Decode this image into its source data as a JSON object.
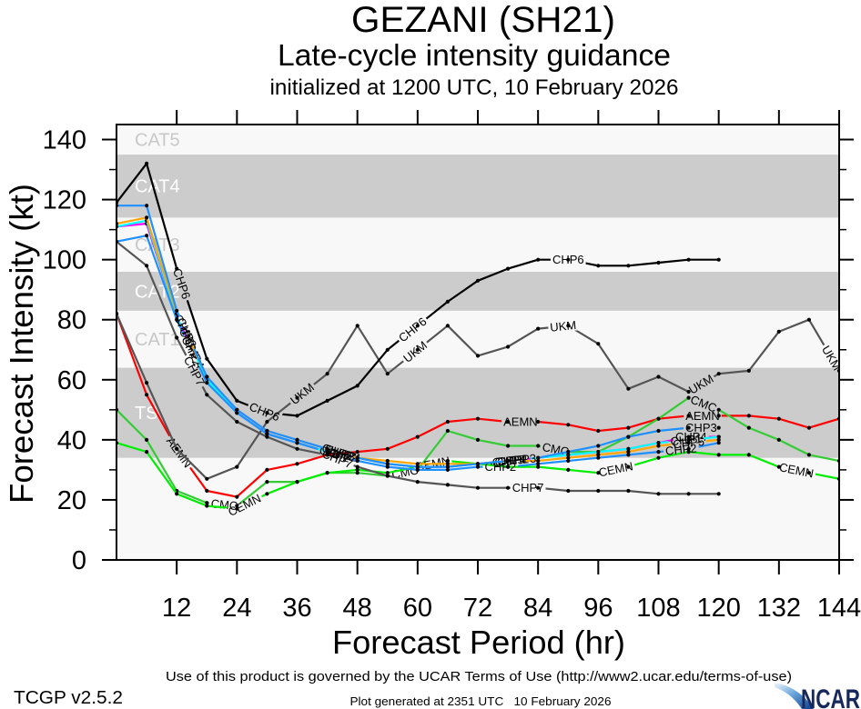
{
  "chart_data": {
    "type": "line",
    "title": "GEZANI (SH21)",
    "subtitle": "Late-cycle intensity guidance",
    "subtitle2": "initialized at 1200 UTC, 10 February 2026",
    "xlabel": "Forecast Period (hr)",
    "ylabel": "Forecast Intensity (kt)",
    "xlim": [
      0,
      144
    ],
    "ylim": [
      0,
      145
    ],
    "x_ticks": [
      12,
      24,
      36,
      48,
      60,
      72,
      84,
      96,
      108,
      120,
      132,
      144
    ],
    "y_ticks": [
      0,
      20,
      40,
      60,
      80,
      100,
      120,
      140
    ],
    "y_minor_ticks": [
      10,
      30,
      50,
      70,
      90,
      110,
      130
    ],
    "grid": false,
    "legend": "none (model names labeled inline along each line)",
    "x": [
      0,
      6,
      12,
      18,
      24,
      30,
      36,
      42,
      48,
      54,
      60,
      66,
      72,
      78,
      84,
      90,
      96,
      102,
      108,
      114,
      120,
      126,
      132,
      138,
      144
    ],
    "band_colors": {
      "gray": "#cccccc",
      "light": "#f8f8f8"
    },
    "band_label_colors": {
      "gray": "#ffffff",
      "light": "#c8c8c8"
    },
    "category_bands": [
      {
        "label": "TS",
        "min": 34,
        "max": 64,
        "shade": "gray"
      },
      {
        "label": "CAT1",
        "min": 64,
        "max": 83,
        "shade": "light"
      },
      {
        "label": "CAT2",
        "min": 83,
        "max": 96,
        "shade": "gray"
      },
      {
        "label": "CAT3",
        "min": 96,
        "max": 114,
        "shade": "light"
      },
      {
        "label": "CAT4",
        "min": 114,
        "max": 135,
        "shade": "gray"
      },
      {
        "label": "CAT5",
        "min": 135,
        "max": null,
        "shade": "light"
      }
    ],
    "series": [
      {
        "name": "AEMN",
        "color": "#ff0000",
        "values": [
          82,
          55,
          37,
          23,
          21,
          30,
          32,
          35,
          36,
          37,
          41,
          46,
          47,
          46,
          46,
          45,
          43,
          44,
          47,
          48,
          48,
          48,
          47,
          44,
          47
        ],
        "label_hours": [
          12.5,
          80.5,
          116.8
        ]
      },
      {
        "name": "CMC",
        "color": "#33cc33",
        "values": [
          50,
          40,
          23,
          19,
          18,
          26,
          26,
          29,
          29,
          28,
          30,
          43,
          40,
          38,
          38,
          36,
          36,
          41,
          47,
          54,
          50,
          44,
          40,
          35,
          33
        ],
        "label_hours": [
          21.5,
          57.5,
          87.5,
          117
        ]
      },
      {
        "name": "CEMN",
        "color": "#00ee00",
        "values": [
          39,
          36,
          22,
          18,
          17,
          22,
          26,
          29,
          30,
          29,
          31,
          33,
          32,
          31,
          31,
          30,
          29,
          31,
          34,
          36,
          35,
          35,
          31,
          29,
          27
        ],
        "label_hours": [
          25.5,
          63,
          99.5,
          135.5
        ]
      },
      {
        "name": "UKM",
        "color": "#555555",
        "values": [
          82,
          59,
          37,
          27,
          31,
          46,
          54,
          62,
          78,
          62,
          70,
          78,
          68,
          71,
          77,
          78,
          72,
          57,
          61,
          56,
          62,
          63,
          76,
          80,
          63
        ],
        "label_hours": [
          37,
          59.5,
          89,
          116.5,
          142.5
        ]
      },
      {
        "name": "CHP7",
        "color": "#555555",
        "values": [
          106,
          98,
          74,
          55,
          46,
          41,
          37,
          35,
          31,
          28,
          26,
          25,
          24,
          24,
          24,
          23,
          23,
          23,
          22,
          22,
          22
        ],
        "label_hours": [
          15.5,
          44,
          82
        ]
      },
      {
        "name": "CHP6",
        "color": "#000000",
        "values": [
          119,
          132,
          97,
          67,
          53,
          49,
          48,
          53,
          58,
          70,
          78,
          86,
          93,
          97,
          100,
          100,
          98,
          98,
          99,
          100,
          100
        ],
        "label_hours": [
          13,
          29.5,
          59,
          90
        ]
      },
      {
        "name": "CHP4",
        "color": "#ff00ff",
        "values": [
          111,
          112,
          81,
          60,
          49,
          42,
          39,
          36,
          34,
          32,
          31,
          31,
          32,
          33,
          34,
          35,
          36,
          37,
          39,
          41,
          41
        ],
        "label_hours": [
          15.5,
          45.5,
          78.5,
          114.5
        ]
      },
      {
        "name": "CHP1",
        "color": "#00ffff",
        "values": [
          111,
          113,
          81,
          60,
          49,
          42,
          39,
          36,
          34,
          32,
          31,
          31,
          32,
          33,
          34,
          35,
          36,
          37,
          39,
          40,
          41
        ],
        "label_hours": [
          14.5,
          45,
          79,
          113.5
        ]
      },
      {
        "name": "CHP2",
        "color": "#1e90ff",
        "values": [
          106,
          108,
          80,
          59,
          49,
          42,
          39,
          36,
          33,
          31,
          30,
          30,
          31,
          31,
          32,
          33,
          34,
          35,
          36,
          37,
          39
        ],
        "label_hours": [
          15,
          43.5,
          76.5,
          112.5
        ]
      },
      {
        "name": "CHP5",
        "color": "#ffa500",
        "values": [
          112,
          114,
          82,
          61,
          50,
          43,
          40,
          37,
          34,
          33,
          32,
          32,
          32,
          33,
          33,
          34,
          35,
          36,
          38,
          39,
          40
        ],
        "label_hours": [
          13.5,
          44,
          78,
          114
        ]
      },
      {
        "name": "CHP3",
        "color": "#1e90ff",
        "values": [
          118,
          118,
          83,
          61,
          50,
          43,
          40,
          37,
          34,
          32,
          31,
          31,
          32,
          33,
          34,
          36,
          38,
          41,
          43,
          44,
          44
        ],
        "label_hours": [
          14,
          44.5,
          80.5,
          116.5
        ]
      }
    ]
  },
  "footer": {
    "terms": "Use of this product is governed by the UCAR Terms of Use (http://www2.ucar.edu/terms-of-use)",
    "version": "TCGP v2.5.2",
    "generated": "Plot generated at 2351 UTC   10 February 2026",
    "logo_text": "NCAR"
  }
}
